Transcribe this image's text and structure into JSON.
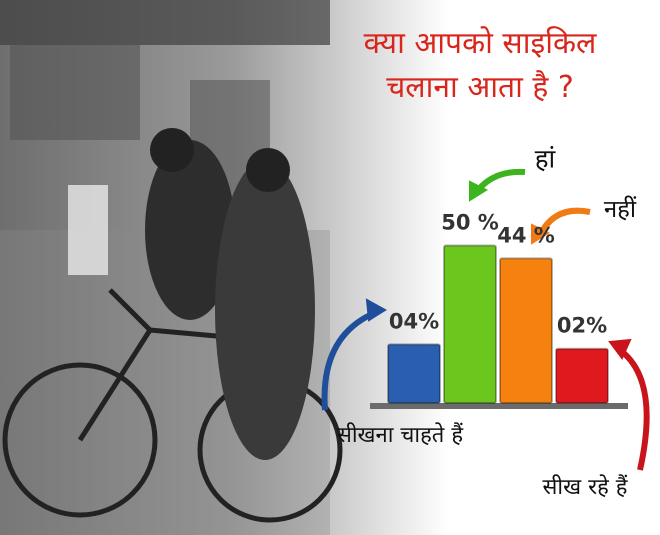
{
  "chart_data": {
    "type": "bar",
    "title": "क्या आपको साइकिल चलाना आता है ?",
    "categories": [
      "सीखना चाहते हैं",
      "हां",
      "नहीं",
      "सीख रहे हैं"
    ],
    "values": [
      4,
      50,
      44,
      2
    ],
    "value_labels": [
      "04%",
      "50 %",
      "44 %",
      "02%"
    ],
    "colors": [
      "#2a5fb0",
      "#6bc61e",
      "#f5820f",
      "#e0191f"
    ]
  }
}
